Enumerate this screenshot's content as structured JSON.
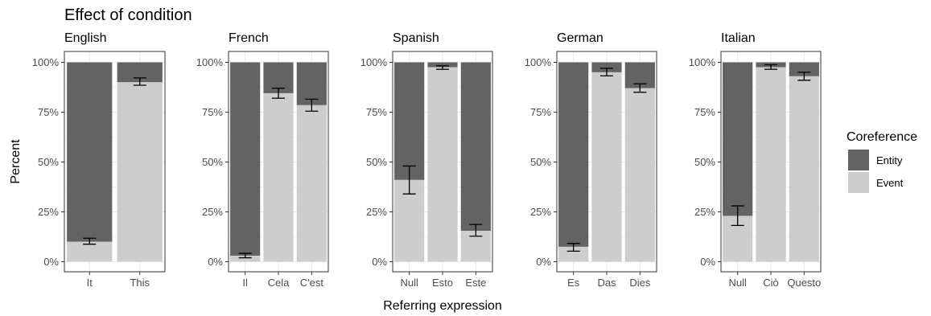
{
  "chart_data": {
    "type": "bar",
    "stacked": true,
    "title": "Effect of condition",
    "xlabel": "Referring expression",
    "ylabel": "Percent",
    "ylim": [
      0,
      100
    ],
    "y_ticks": [
      "0%",
      "25%",
      "50%",
      "75%",
      "100%"
    ],
    "y_tick_values": [
      0,
      25,
      50,
      75,
      100
    ],
    "legend": {
      "title": "Coreference",
      "position": "right",
      "entries": [
        {
          "name": "Entity",
          "color": "#636363"
        },
        {
          "name": "Event",
          "color": "#cdcdcd"
        }
      ]
    },
    "facets": [
      {
        "name": "English",
        "categories": [
          "It",
          "This"
        ],
        "event_percent": [
          10,
          90
        ],
        "error_low": [
          8.8,
          88.5
        ],
        "error_high": [
          11.8,
          92.2
        ]
      },
      {
        "name": "French",
        "categories": [
          "Il",
          "Cela",
          "C'est"
        ],
        "event_percent": [
          3,
          84.5,
          78.5
        ],
        "error_low": [
          2,
          82
        ],
        "error_high": [
          4.2,
          87
        ],
        "error_low_all": [
          2,
          82,
          75.5
        ],
        "error_high_all": [
          4.2,
          87,
          81.5
        ]
      },
      {
        "name": "Spanish",
        "categories": [
          "Null",
          "Esto",
          "Este"
        ],
        "event_percent": [
          41,
          97.5,
          15.5
        ],
        "error_low_all": [
          34,
          96.5,
          12.8
        ],
        "error_high_all": [
          48,
          98.2,
          18.7
        ]
      },
      {
        "name": "German",
        "categories": [
          "Es",
          "Das",
          "Dies"
        ],
        "event_percent": [
          7.5,
          95,
          87
        ],
        "error_low_all": [
          5.3,
          93.2,
          85
        ],
        "error_high_all": [
          9.2,
          97,
          89.2
        ]
      },
      {
        "name": "Italian",
        "categories": [
          "Null",
          "Ciò",
          "Questo"
        ],
        "event_percent": [
          23,
          97.5,
          93
        ],
        "error_low_all": [
          18.2,
          96.5,
          91
        ],
        "error_high_all": [
          28,
          98.8,
          95
        ]
      }
    ]
  }
}
